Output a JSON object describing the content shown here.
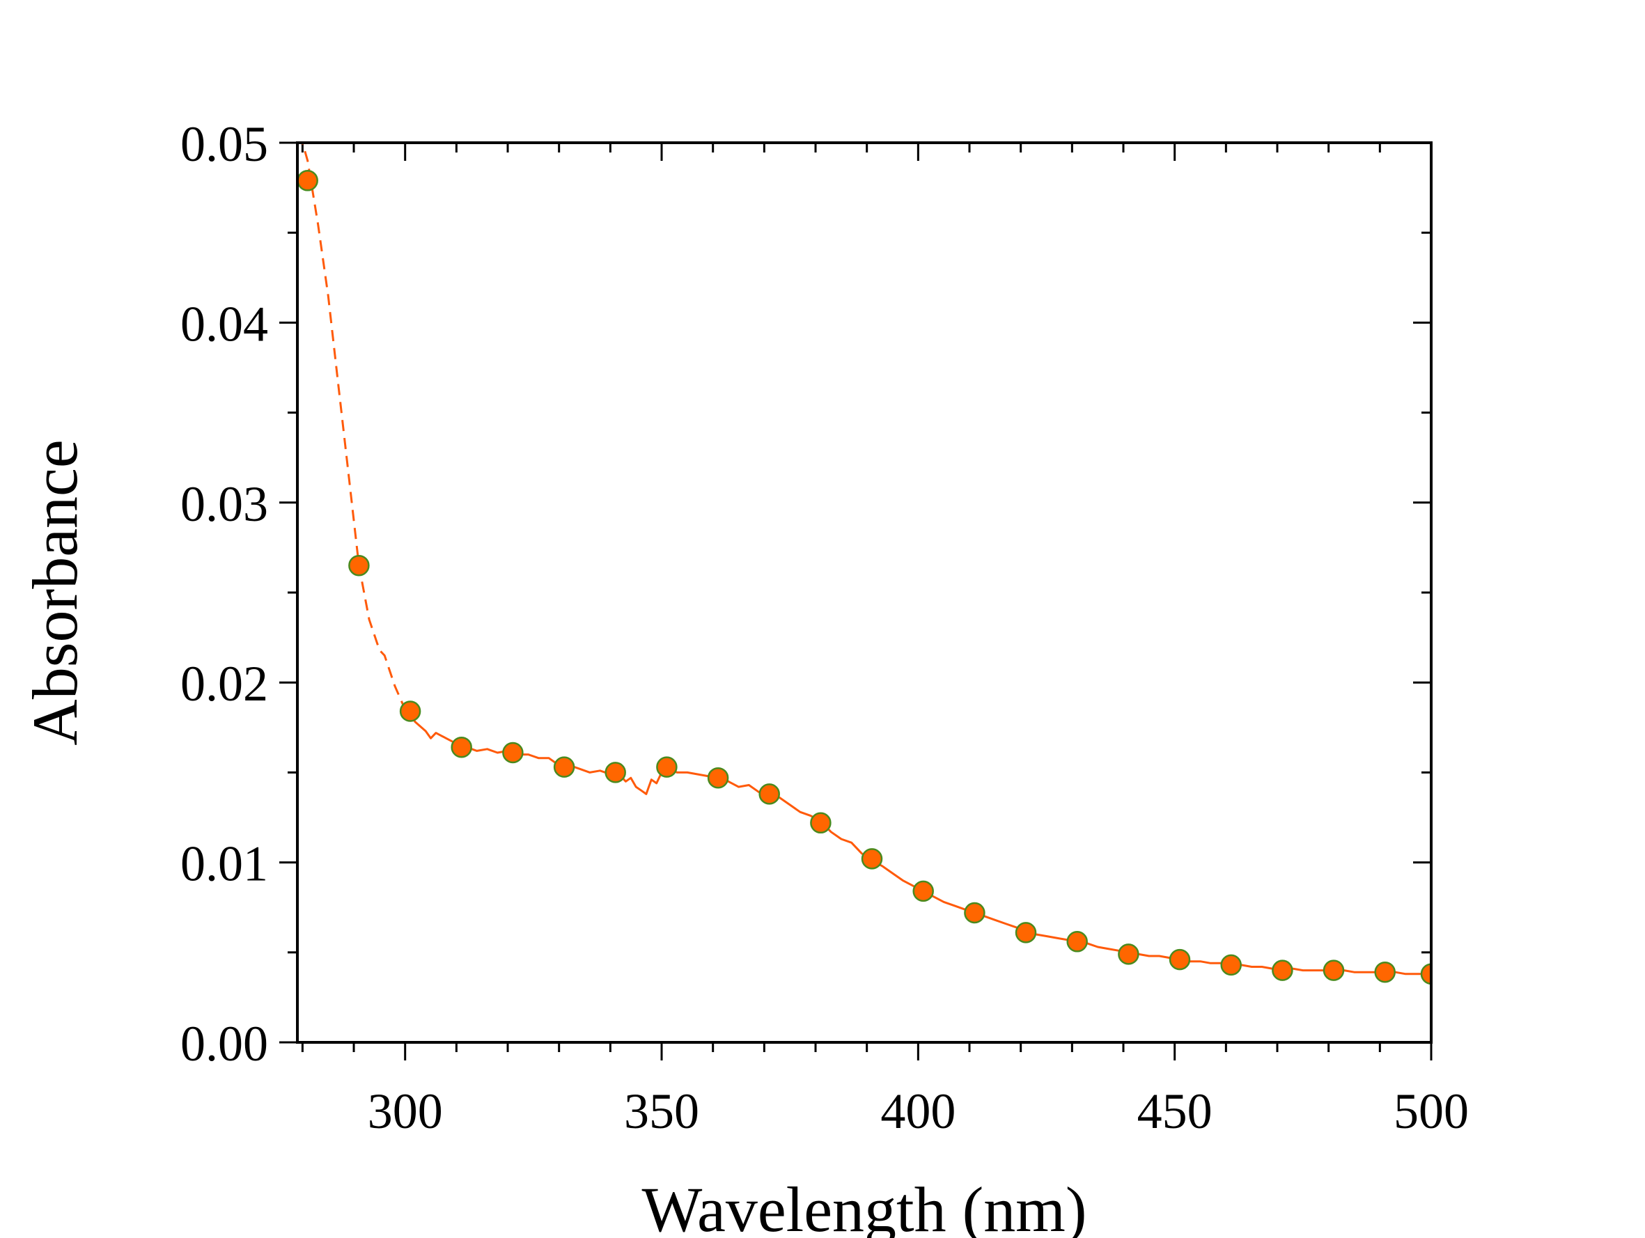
{
  "chart_data": {
    "type": "line",
    "xlabel": "Wavelength (nm)",
    "ylabel": "Absorbance",
    "xlim": [
      279,
      500
    ],
    "ylim": [
      0,
      0.05
    ],
    "x_ticks": [
      300,
      350,
      400,
      450,
      500
    ],
    "x_tick_labels": [
      "300",
      "350",
      "400",
      "450",
      "500"
    ],
    "y_ticks": [
      0,
      0.01,
      0.02,
      0.03,
      0.04,
      0.05
    ],
    "y_tick_labels": [
      "0.00",
      "0.01",
      "0.02",
      "0.03",
      "0.04",
      "0.05"
    ],
    "x_minor_step": 10,
    "y_minor_step": 0.005,
    "grid": false,
    "colors": {
      "line": "#ff5a0a",
      "marker_fill": "#ff6600",
      "marker_edge": "#4a8a1e",
      "axis": "#000000"
    },
    "series": [
      {
        "line_style_dashed_until_x": 300,
        "curve": [
          [
            279.5,
            0.0505
          ],
          [
            281,
            0.049
          ],
          [
            283,
            0.0455
          ],
          [
            285,
            0.0415
          ],
          [
            287,
            0.0365
          ],
          [
            289,
            0.0315
          ],
          [
            291,
            0.0265
          ],
          [
            293,
            0.0235
          ],
          [
            295,
            0.0218
          ],
          [
            296,
            0.0215
          ],
          [
            298,
            0.0198
          ],
          [
            300,
            0.0185
          ],
          [
            302,
            0.0178
          ],
          [
            304,
            0.0173
          ],
          [
            305,
            0.0169
          ],
          [
            306,
            0.0172
          ],
          [
            308,
            0.0169
          ],
          [
            310,
            0.0166
          ],
          [
            312,
            0.0164
          ],
          [
            314,
            0.0162
          ],
          [
            316,
            0.0163
          ],
          [
            318,
            0.0161
          ],
          [
            320,
            0.0162
          ],
          [
            322,
            0.016
          ],
          [
            324,
            0.016
          ],
          [
            326,
            0.0158
          ],
          [
            328,
            0.0158
          ],
          [
            330,
            0.0154
          ],
          [
            332,
            0.0154
          ],
          [
            334,
            0.0152
          ],
          [
            336,
            0.015
          ],
          [
            338,
            0.0151
          ],
          [
            340,
            0.0149
          ],
          [
            342,
            0.0148
          ],
          [
            343,
            0.0145
          ],
          [
            344,
            0.0147
          ],
          [
            345,
            0.0142
          ],
          [
            346,
            0.014
          ],
          [
            347,
            0.0138
          ],
          [
            348,
            0.0146
          ],
          [
            349,
            0.0144
          ],
          [
            350,
            0.015
          ],
          [
            351,
            0.0153
          ],
          [
            353,
            0.015
          ],
          [
            355,
            0.015
          ],
          [
            357,
            0.0149
          ],
          [
            359,
            0.0148
          ],
          [
            361,
            0.0147
          ],
          [
            363,
            0.0145
          ],
          [
            365,
            0.0142
          ],
          [
            367,
            0.0143
          ],
          [
            369,
            0.0139
          ],
          [
            371,
            0.0138
          ],
          [
            373,
            0.0136
          ],
          [
            375,
            0.0132
          ],
          [
            377,
            0.0128
          ],
          [
            379,
            0.0126
          ],
          [
            381,
            0.0123
          ],
          [
            383,
            0.0117
          ],
          [
            385,
            0.0113
          ],
          [
            387,
            0.0111
          ],
          [
            389,
            0.0105
          ],
          [
            391,
            0.0101
          ],
          [
            393,
            0.0098
          ],
          [
            395,
            0.0094
          ],
          [
            397,
            0.009
          ],
          [
            399,
            0.0087
          ],
          [
            401,
            0.0084
          ],
          [
            403,
            0.0081
          ],
          [
            405,
            0.0078
          ],
          [
            407,
            0.0076
          ],
          [
            409,
            0.0074
          ],
          [
            411,
            0.0072
          ],
          [
            413,
            0.007
          ],
          [
            415,
            0.0068
          ],
          [
            417,
            0.0066
          ],
          [
            419,
            0.0064
          ],
          [
            421,
            0.0062
          ],
          [
            423,
            0.006
          ],
          [
            425,
            0.0059
          ],
          [
            427,
            0.0058
          ],
          [
            429,
            0.0057
          ],
          [
            431,
            0.0056
          ],
          [
            433,
            0.0055
          ],
          [
            435,
            0.0053
          ],
          [
            437,
            0.0052
          ],
          [
            439,
            0.0051
          ],
          [
            441,
            0.005
          ],
          [
            443,
            0.0049
          ],
          [
            445,
            0.0048
          ],
          [
            447,
            0.0048
          ],
          [
            449,
            0.0047
          ],
          [
            451,
            0.0046
          ],
          [
            453,
            0.0045
          ],
          [
            455,
            0.0045
          ],
          [
            457,
            0.0044
          ],
          [
            459,
            0.0044
          ],
          [
            461,
            0.0043
          ],
          [
            463,
            0.0043
          ],
          [
            465,
            0.0042
          ],
          [
            467,
            0.0042
          ],
          [
            469,
            0.0041
          ],
          [
            471,
            0.0041
          ],
          [
            473,
            0.0041
          ],
          [
            475,
            0.004
          ],
          [
            477,
            0.004
          ],
          [
            479,
            0.004
          ],
          [
            481,
            0.004
          ],
          [
            483,
            0.004
          ],
          [
            485,
            0.0039
          ],
          [
            487,
            0.0039
          ],
          [
            489,
            0.0039
          ],
          [
            491,
            0.0039
          ],
          [
            493,
            0.0039
          ],
          [
            495,
            0.0038
          ],
          [
            497,
            0.0038
          ],
          [
            499,
            0.0038
          ],
          [
            500,
            0.0038
          ]
        ],
        "points": [
          [
            281,
            0.0479
          ],
          [
            291,
            0.0265
          ],
          [
            301,
            0.0184
          ],
          [
            311,
            0.0164
          ],
          [
            321,
            0.0161
          ],
          [
            331,
            0.0153
          ],
          [
            341,
            0.015
          ],
          [
            351,
            0.0153
          ],
          [
            361,
            0.0147
          ],
          [
            371,
            0.0138
          ],
          [
            381,
            0.0122
          ],
          [
            391,
            0.0102
          ],
          [
            401,
            0.0084
          ],
          [
            411,
            0.0072
          ],
          [
            421,
            0.0061
          ],
          [
            431,
            0.0056
          ],
          [
            441,
            0.0049
          ],
          [
            451,
            0.0046
          ],
          [
            461,
            0.0043
          ],
          [
            471,
            0.004
          ],
          [
            481,
            0.004
          ],
          [
            491,
            0.0039
          ],
          [
            500,
            0.0038
          ]
        ]
      }
    ]
  }
}
